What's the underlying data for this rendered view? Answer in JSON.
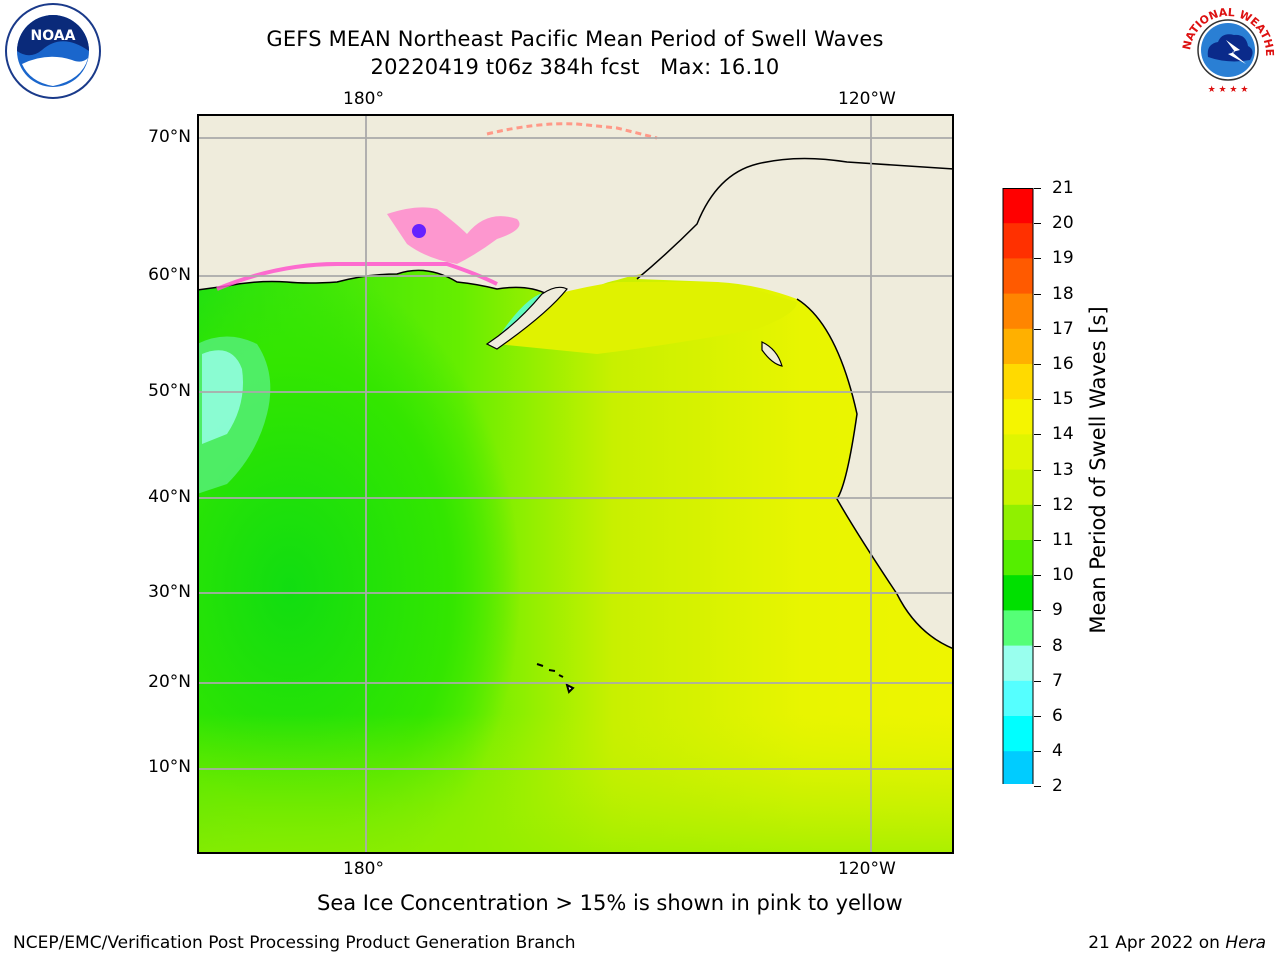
{
  "header": {
    "title_line1": "GEFS MEAN Northeast Pacific Mean Period of Swell Waves",
    "title_line2": "20220419 t06z 384h fcst   Max: 16.10"
  },
  "map": {
    "top_lon_labels": [
      "180°",
      "120°W"
    ],
    "bottom_lon_labels": [
      "180°",
      "120°W"
    ],
    "lat_labels": [
      "70°N",
      "60°N",
      "50°N",
      "40°N",
      "30°N",
      "20°N",
      "10°N"
    ],
    "colors": {
      "land": "#efecdc",
      "ocean_low": "#55ee55",
      "ocean_green": "#11dd11",
      "ocean_yellow": "#e8f500",
      "ocean_lime": "#c8f000",
      "grid": "#aaaaaa",
      "ice_pink": "#ff55cc"
    }
  },
  "colorbar": {
    "label": "Mean Period of Swell Waves [s]",
    "ticks": [
      "21",
      "20",
      "19",
      "18",
      "17",
      "16",
      "15",
      "14",
      "13",
      "12",
      "11",
      "10",
      "9",
      "8",
      "7",
      "6",
      "4",
      "2"
    ],
    "colors": [
      "#ff0000",
      "#ff3000",
      "#ff5a00",
      "#ff8500",
      "#ffb000",
      "#ffda00",
      "#f5f500",
      "#e0f500",
      "#c8f500",
      "#90f000",
      "#55ee00",
      "#00e000",
      "#55ff77",
      "#99ffee",
      "#55ffff",
      "#00ffff",
      "#00ccff",
      "#0088ff",
      "#0033ff"
    ],
    "extend_color": "#0000ee"
  },
  "footer": {
    "sea_ice_note": "Sea Ice Concentration > 15% is shown in pink to yellow",
    "left": "NCEP/EMC/Verification Post Processing Product Generation Branch",
    "right_date": "21 Apr 2022 on",
    "right_host": "Hera"
  },
  "logos": {
    "noaa_text": "NOAA",
    "nws_text": "NATIONAL WEATHER SERVICE"
  }
}
